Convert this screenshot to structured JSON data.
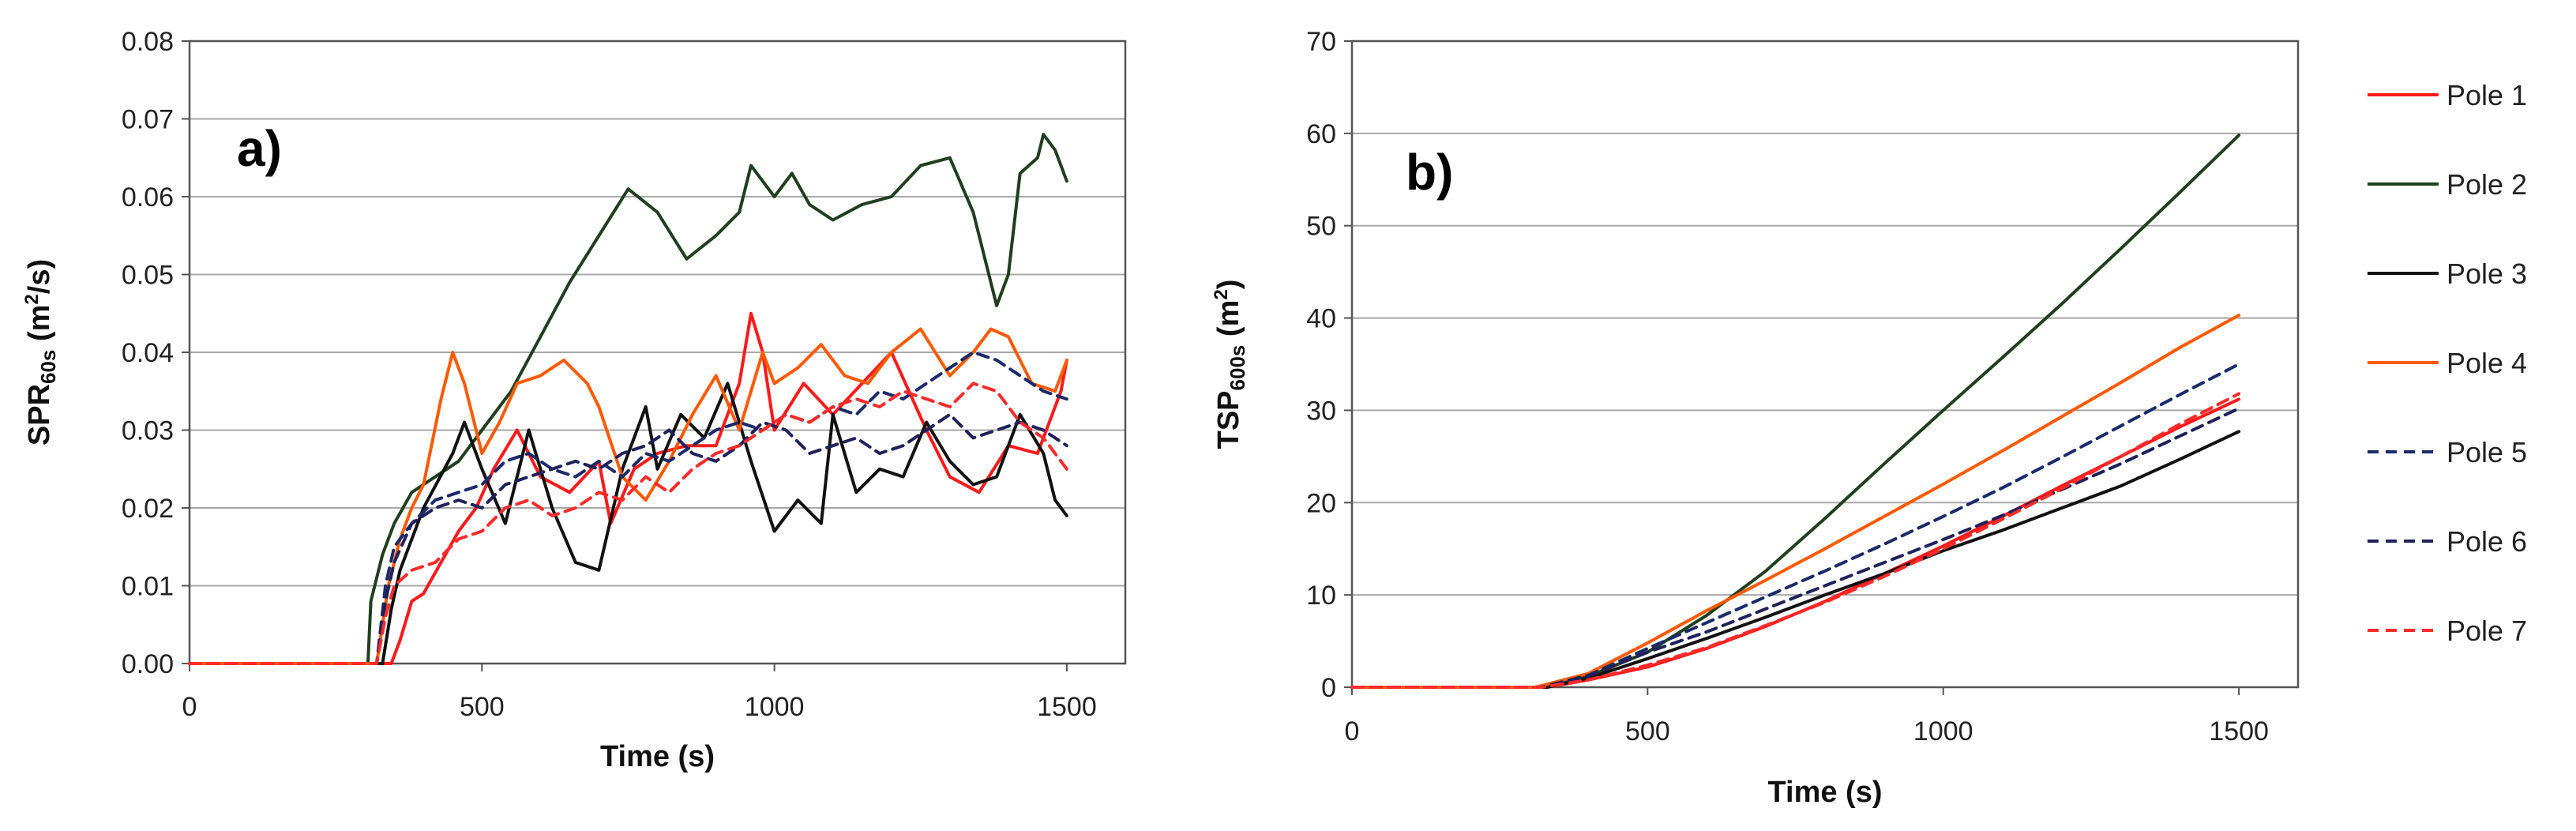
{
  "chart_data": [
    {
      "type": "line",
      "panel_label": "a)",
      "xlabel": "Time (s)",
      "ylabel_main": "SPR",
      "ylabel_sub": "60s",
      "ylabel_unit_pre": " (m",
      "ylabel_unit_sup": "2",
      "ylabel_unit_post": "/s)",
      "xlim": [
        0,
        1600
      ],
      "ylim": [
        0,
        0.08
      ],
      "xticks": [
        "0",
        "500",
        "1000",
        "1500"
      ],
      "xtick_values": [
        0,
        500,
        1000,
        1500
      ],
      "yticks": [
        "0.00",
        "0.01",
        "0.02",
        "0.03",
        "0.04",
        "0.05",
        "0.06",
        "0.07",
        "0.08"
      ],
      "ytick_values": [
        0,
        0.01,
        0.02,
        0.03,
        0.04,
        0.05,
        0.06,
        0.07,
        0.08
      ],
      "grid": true,
      "series": [
        {
          "name": "Pole 1",
          "color": "#ff1a1a",
          "dash": "solid",
          "x": [
            0,
            345,
            360,
            380,
            400,
            430,
            460,
            490,
            520,
            560,
            600,
            650,
            700,
            720,
            760,
            800,
            850,
            900,
            940,
            960,
            980,
            1000,
            1050,
            1100,
            1150,
            1200,
            1230,
            1260,
            1300,
            1350,
            1400,
            1450,
            1490,
            1500
          ],
          "y": [
            0,
            0,
            0.003,
            0.008,
            0.009,
            0.013,
            0.017,
            0.02,
            0.025,
            0.03,
            0.024,
            0.022,
            0.026,
            0.018,
            0.025,
            0.027,
            0.028,
            0.028,
            0.036,
            0.045,
            0.04,
            0.03,
            0.036,
            0.032,
            0.036,
            0.04,
            0.035,
            0.03,
            0.024,
            0.022,
            0.028,
            0.027,
            0.035,
            0.039
          ]
        },
        {
          "name": "Pole 2",
          "color": "#1f3f1f",
          "dash": "solid",
          "x": [
            0,
            305,
            310,
            330,
            350,
            380,
            420,
            460,
            500,
            550,
            600,
            650,
            700,
            750,
            800,
            850,
            900,
            940,
            960,
            1000,
            1030,
            1060,
            1100,
            1150,
            1200,
            1250,
            1300,
            1340,
            1380,
            1400,
            1420,
            1450,
            1460,
            1480,
            1500
          ],
          "y": [
            0,
            0,
            0.008,
            0.014,
            0.018,
            0.022,
            0.024,
            0.026,
            0.03,
            0.035,
            0.042,
            0.049,
            0.055,
            0.061,
            0.058,
            0.052,
            0.055,
            0.058,
            0.064,
            0.06,
            0.063,
            0.059,
            0.057,
            0.059,
            0.06,
            0.064,
            0.065,
            0.058,
            0.046,
            0.05,
            0.063,
            0.065,
            0.068,
            0.066,
            0.062
          ]
        },
        {
          "name": "Pole 3",
          "color": "#111111",
          "dash": "solid",
          "x": [
            0,
            330,
            345,
            360,
            400,
            450,
            470,
            500,
            540,
            580,
            620,
            660,
            700,
            740,
            780,
            800,
            840,
            880,
            920,
            960,
            1000,
            1040,
            1080,
            1100,
            1140,
            1180,
            1220,
            1260,
            1300,
            1340,
            1380,
            1420,
            1460,
            1480,
            1500
          ],
          "y": [
            0,
            0,
            0.007,
            0.012,
            0.02,
            0.027,
            0.031,
            0.025,
            0.018,
            0.03,
            0.02,
            0.013,
            0.012,
            0.025,
            0.033,
            0.025,
            0.032,
            0.029,
            0.036,
            0.026,
            0.017,
            0.021,
            0.018,
            0.032,
            0.022,
            0.025,
            0.024,
            0.031,
            0.026,
            0.023,
            0.024,
            0.032,
            0.027,
            0.021,
            0.019
          ]
        },
        {
          "name": "Pole 4",
          "color": "#ff5a00",
          "dash": "solid",
          "x": [
            0,
            320,
            340,
            360,
            380,
            400,
            430,
            450,
            470,
            500,
            530,
            560,
            600,
            640,
            680,
            700,
            740,
            780,
            820,
            860,
            900,
            940,
            980,
            1000,
            1040,
            1080,
            1120,
            1160,
            1200,
            1250,
            1300,
            1340,
            1370,
            1400,
            1440,
            1480,
            1500
          ],
          "y": [
            0,
            0,
            0.01,
            0.016,
            0.02,
            0.023,
            0.034,
            0.04,
            0.036,
            0.027,
            0.031,
            0.036,
            0.037,
            0.039,
            0.036,
            0.033,
            0.024,
            0.021,
            0.026,
            0.032,
            0.037,
            0.03,
            0.04,
            0.036,
            0.038,
            0.041,
            0.037,
            0.036,
            0.04,
            0.043,
            0.037,
            0.04,
            0.043,
            0.042,
            0.036,
            0.035,
            0.039
          ]
        },
        {
          "name": "Pole 5",
          "color": "#1a2a6a",
          "dash": "dashed",
          "x": [
            0,
            320,
            335,
            350,
            380,
            420,
            460,
            500,
            540,
            580,
            620,
            660,
            700,
            740,
            780,
            820,
            860,
            900,
            940,
            980,
            1020,
            1060,
            1100,
            1140,
            1180,
            1220,
            1260,
            1300,
            1340,
            1380,
            1420,
            1460,
            1500
          ],
          "y": [
            0,
            0,
            0.01,
            0.015,
            0.018,
            0.021,
            0.022,
            0.023,
            0.026,
            0.027,
            0.025,
            0.024,
            0.026,
            0.024,
            0.027,
            0.026,
            0.028,
            0.03,
            0.031,
            0.03,
            0.032,
            0.031,
            0.033,
            0.032,
            0.035,
            0.034,
            0.036,
            0.038,
            0.04,
            0.039,
            0.037,
            0.035,
            0.034
          ]
        },
        {
          "name": "Pole 6",
          "color": "#20205a",
          "dash": "dashed",
          "x": [
            0,
            320,
            335,
            350,
            380,
            420,
            460,
            500,
            540,
            580,
            620,
            660,
            700,
            740,
            780,
            820,
            860,
            900,
            940,
            980,
            1020,
            1060,
            1100,
            1140,
            1180,
            1220,
            1260,
            1300,
            1340,
            1380,
            1420,
            1460,
            1500
          ],
          "y": [
            0,
            0,
            0.008,
            0.013,
            0.018,
            0.02,
            0.021,
            0.02,
            0.023,
            0.024,
            0.025,
            0.026,
            0.025,
            0.027,
            0.028,
            0.03,
            0.027,
            0.026,
            0.028,
            0.031,
            0.03,
            0.027,
            0.028,
            0.029,
            0.027,
            0.028,
            0.03,
            0.032,
            0.029,
            0.03,
            0.031,
            0.03,
            0.028
          ]
        },
        {
          "name": "Pole 7",
          "color": "#ff2a2a",
          "dash": "dashed",
          "x": [
            0,
            320,
            335,
            350,
            380,
            420,
            460,
            500,
            540,
            580,
            620,
            660,
            700,
            740,
            780,
            820,
            860,
            900,
            940,
            980,
            1020,
            1060,
            1100,
            1140,
            1180,
            1220,
            1260,
            1300,
            1340,
            1380,
            1420,
            1460,
            1500
          ],
          "y": [
            0,
            0,
            0.006,
            0.01,
            0.012,
            0.013,
            0.016,
            0.017,
            0.02,
            0.021,
            0.019,
            0.02,
            0.022,
            0.021,
            0.024,
            0.022,
            0.025,
            0.027,
            0.028,
            0.03,
            0.032,
            0.031,
            0.033,
            0.034,
            0.033,
            0.035,
            0.034,
            0.033,
            0.036,
            0.035,
            0.031,
            0.029,
            0.025
          ]
        }
      ]
    },
    {
      "type": "line",
      "panel_label": "b)",
      "xlabel": "Time (s)",
      "ylabel_main": "TSP",
      "ylabel_sub": "600s",
      "ylabel_unit_pre": " (m",
      "ylabel_unit_sup": "2",
      "ylabel_unit_post": ")",
      "xlim": [
        0,
        1600
      ],
      "ylim": [
        0,
        70
      ],
      "xticks": [
        "0",
        "500",
        "1000",
        "1500"
      ],
      "xtick_values": [
        0,
        500,
        1000,
        1500
      ],
      "yticks": [
        "0",
        "10",
        "20",
        "30",
        "40",
        "50",
        "60",
        "70"
      ],
      "ytick_values": [
        0,
        10,
        20,
        30,
        40,
        50,
        60,
        70
      ],
      "grid": true,
      "legend_position": "right",
      "series": [
        {
          "name": "Pole 1",
          "color": "#ff1a1a",
          "dash": "solid",
          "x": [
            0,
            330,
            400,
            500,
            600,
            700,
            800,
            900,
            1000,
            1100,
            1200,
            1300,
            1400,
            1500
          ],
          "y": [
            0,
            0,
            0.8,
            2.2,
            4.2,
            6.6,
            9.3,
            12.3,
            15.3,
            18.5,
            21.8,
            25.0,
            28.2,
            31.2
          ]
        },
        {
          "name": "Pole 2",
          "color": "#1f3f1f",
          "dash": "solid",
          "x": [
            0,
            310,
            400,
            500,
            600,
            700,
            800,
            900,
            1000,
            1100,
            1200,
            1300,
            1400,
            1500
          ],
          "y": [
            0,
            0,
            1.2,
            3.8,
            7.8,
            12.6,
            18.3,
            24.2,
            30.0,
            35.7,
            41.5,
            47.5,
            53.6,
            59.8
          ]
        },
        {
          "name": "Pole 3",
          "color": "#111111",
          "dash": "solid",
          "x": [
            0,
            330,
            400,
            500,
            600,
            700,
            800,
            900,
            1000,
            1100,
            1200,
            1300,
            1400,
            1500
          ],
          "y": [
            0,
            0,
            1.0,
            3.1,
            5.3,
            7.6,
            10.0,
            12.3,
            14.8,
            17.0,
            19.4,
            21.8,
            24.7,
            27.7
          ]
        },
        {
          "name": "Pole 4",
          "color": "#ff5a00",
          "dash": "solid",
          "x": [
            0,
            310,
            400,
            500,
            600,
            700,
            800,
            900,
            1000,
            1100,
            1200,
            1300,
            1400,
            1500
          ],
          "y": [
            0,
            0,
            1.5,
            4.8,
            8.3,
            11.6,
            15.0,
            18.5,
            22.0,
            25.6,
            29.3,
            33.0,
            36.8,
            40.3
          ]
        },
        {
          "name": "Pole 5",
          "color": "#1a2a6a",
          "dash": "dashed",
          "x": [
            0,
            320,
            400,
            500,
            600,
            700,
            800,
            900,
            1000,
            1100,
            1200,
            1300,
            1400,
            1500
          ],
          "y": [
            0,
            0,
            1.3,
            4.2,
            7.0,
            9.8,
            12.6,
            15.5,
            18.5,
            21.6,
            24.9,
            28.3,
            31.7,
            35.0
          ]
        },
        {
          "name": "Pole 6",
          "color": "#20205a",
          "dash": "dashed",
          "x": [
            0,
            320,
            400,
            500,
            600,
            700,
            800,
            900,
            1000,
            1100,
            1200,
            1300,
            1400,
            1500
          ],
          "y": [
            0,
            0,
            1.2,
            3.8,
            6.0,
            8.5,
            11.0,
            13.5,
            16.0,
            18.6,
            21.4,
            24.2,
            27.2,
            30.2
          ]
        },
        {
          "name": "Pole 7",
          "color": "#ff2a2a",
          "dash": "dashed",
          "x": [
            0,
            320,
            400,
            500,
            600,
            700,
            800,
            900,
            1000,
            1100,
            1200,
            1300,
            1400,
            1500
          ],
          "y": [
            0,
            0,
            0.8,
            2.4,
            4.3,
            6.7,
            9.2,
            12.0,
            15.0,
            18.2,
            21.5,
            25.0,
            28.5,
            31.8
          ]
        }
      ]
    }
  ]
}
